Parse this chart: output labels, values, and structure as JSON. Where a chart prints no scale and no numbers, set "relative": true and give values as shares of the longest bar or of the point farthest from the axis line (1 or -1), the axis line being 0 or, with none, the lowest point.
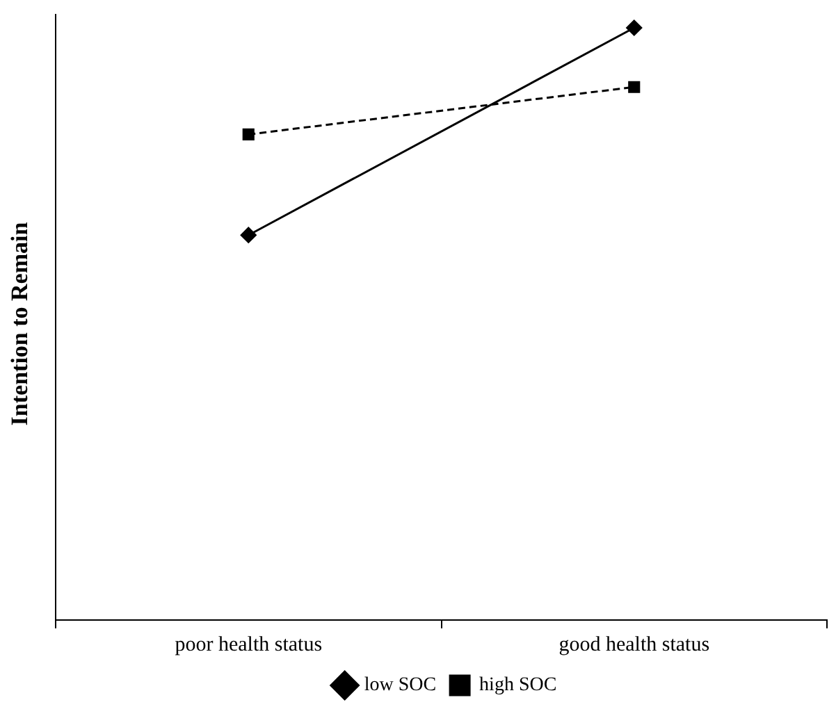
{
  "chart_data": {
    "type": "line",
    "ylabel": "Intention to Remain",
    "relative": true,
    "categories": [
      "poor health status",
      "good health status"
    ],
    "series": [
      {
        "name": "low SOC",
        "color": "#000000",
        "values": [
          0.65,
          1
        ],
        "marker": "diamond",
        "line_style": "solid"
      },
      {
        "name": "high SOC",
        "color": "#000000",
        "values": [
          0.82,
          0.9
        ],
        "marker": "square",
        "line_style": "dashed"
      }
    ],
    "legend": "bottom",
    "grid": false
  }
}
